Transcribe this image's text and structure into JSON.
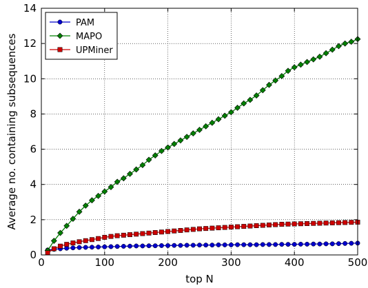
{
  "chart_data": {
    "type": "line",
    "title": "",
    "xlabel": "top N",
    "ylabel": "Average no. containing subsequences",
    "xlim": [
      0,
      500
    ],
    "ylim": [
      0,
      14
    ],
    "xticks": [
      0,
      100,
      200,
      300,
      400,
      500
    ],
    "yticks": [
      0,
      2,
      4,
      6,
      8,
      10,
      12,
      14
    ],
    "xtick_labels": [
      "0",
      "100",
      "200",
      "300",
      "400",
      "500"
    ],
    "ytick_labels": [
      "0",
      "2",
      "4",
      "6",
      "8",
      "10",
      "12",
      "14"
    ],
    "grid": true,
    "legend_position": "top-left",
    "x": [
      10,
      20,
      30,
      40,
      50,
      60,
      70,
      80,
      90,
      100,
      110,
      120,
      130,
      140,
      150,
      160,
      170,
      180,
      190,
      200,
      210,
      220,
      230,
      240,
      250,
      260,
      270,
      280,
      290,
      300,
      310,
      320,
      330,
      340,
      350,
      360,
      370,
      380,
      390,
      400,
      410,
      420,
      430,
      440,
      450,
      460,
      470,
      480,
      490,
      500
    ],
    "series": [
      {
        "name": "PAM",
        "color": "#0000cc",
        "marker": "circle",
        "values": [
          0.28,
          0.32,
          0.35,
          0.38,
          0.4,
          0.42,
          0.43,
          0.44,
          0.45,
          0.46,
          0.47,
          0.48,
          0.49,
          0.5,
          0.51,
          0.51,
          0.52,
          0.52,
          0.53,
          0.53,
          0.54,
          0.54,
          0.55,
          0.55,
          0.56,
          0.56,
          0.56,
          0.57,
          0.57,
          0.57,
          0.58,
          0.58,
          0.58,
          0.58,
          0.59,
          0.59,
          0.59,
          0.6,
          0.6,
          0.6,
          0.61,
          0.61,
          0.62,
          0.62,
          0.63,
          0.63,
          0.64,
          0.65,
          0.66,
          0.67
        ]
      },
      {
        "name": "MAPO",
        "color": "#008000",
        "marker": "diamond",
        "values": [
          0.25,
          0.8,
          1.25,
          1.65,
          2.05,
          2.45,
          2.8,
          3.1,
          3.35,
          3.6,
          3.85,
          4.15,
          4.35,
          4.6,
          4.85,
          5.1,
          5.4,
          5.65,
          5.9,
          6.1,
          6.3,
          6.5,
          6.7,
          6.9,
          7.1,
          7.3,
          7.5,
          7.7,
          7.9,
          8.1,
          8.35,
          8.6,
          8.8,
          9.05,
          9.35,
          9.65,
          9.9,
          10.15,
          10.45,
          10.65,
          10.8,
          10.95,
          11.1,
          11.25,
          11.45,
          11.65,
          11.85,
          12.0,
          12.1,
          12.25
        ]
      },
      {
        "name": "UPMiner",
        "color": "#cc0000",
        "marker": "square",
        "values": [
          0.12,
          0.35,
          0.5,
          0.6,
          0.68,
          0.75,
          0.81,
          0.87,
          0.93,
          1.0,
          1.05,
          1.09,
          1.12,
          1.15,
          1.18,
          1.21,
          1.24,
          1.27,
          1.3,
          1.33,
          1.36,
          1.39,
          1.42,
          1.45,
          1.48,
          1.5,
          1.52,
          1.54,
          1.56,
          1.58,
          1.6,
          1.62,
          1.64,
          1.66,
          1.68,
          1.7,
          1.72,
          1.74,
          1.75,
          1.76,
          1.77,
          1.78,
          1.79,
          1.8,
          1.81,
          1.82,
          1.83,
          1.84,
          1.85,
          1.86
        ]
      }
    ]
  }
}
